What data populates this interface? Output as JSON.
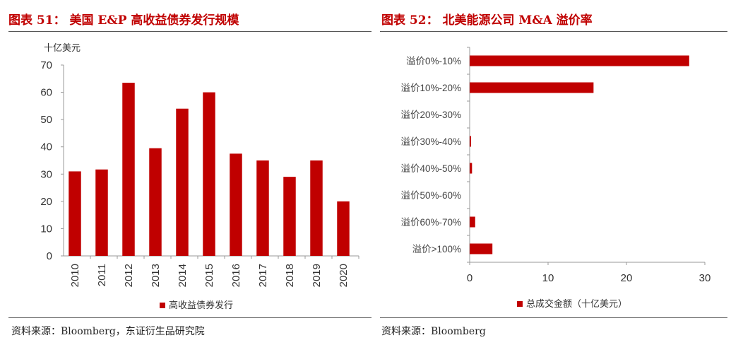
{
  "colors": {
    "title": "#c00000",
    "bar": "#c00000",
    "axis": "#999999",
    "text": "#333333"
  },
  "left": {
    "title": "图表 51： 美国 E&P 高收益债券发行规模",
    "source": "资料来源：Bloomberg，东证衍生品研究院",
    "chart_data": {
      "type": "bar",
      "unit_label": "十亿美元",
      "categories": [
        "2010",
        "2011",
        "2012",
        "2013",
        "2014",
        "2015",
        "2016",
        "2017",
        "2018",
        "2019",
        "2020"
      ],
      "series": [
        {
          "name": "高收益债券发行",
          "values": [
            31,
            31.7,
            63.5,
            39.5,
            54,
            60,
            37.5,
            35,
            29,
            35,
            20
          ]
        }
      ],
      "ylim": [
        0,
        70
      ],
      "yticks": [
        "0",
        "10",
        "20",
        "30",
        "40",
        "50",
        "60",
        "70"
      ],
      "legend_position": "bottom",
      "grid": false
    }
  },
  "right": {
    "title": "图表 52： 北美能源公司 M&A 溢价率",
    "source": "资料来源：Bloomberg",
    "chart_data": {
      "type": "bar",
      "orientation": "horizontal",
      "categories": [
        "溢价0%-10%",
        "溢价10%-20%",
        "溢价20%-30%",
        "溢价30%-40%",
        "溢价40%-50%",
        "溢价50%-60%",
        "溢价60%-70%",
        "溢价>100%"
      ],
      "series": [
        {
          "name": "总成交金额（十亿美元）",
          "values": [
            28,
            15.8,
            0,
            0.15,
            0.3,
            0,
            0.7,
            2.9
          ]
        }
      ],
      "xlim": [
        0,
        30
      ],
      "xticks": [
        "0",
        "10",
        "20",
        "30"
      ],
      "legend_position": "bottom",
      "grid": false
    }
  }
}
